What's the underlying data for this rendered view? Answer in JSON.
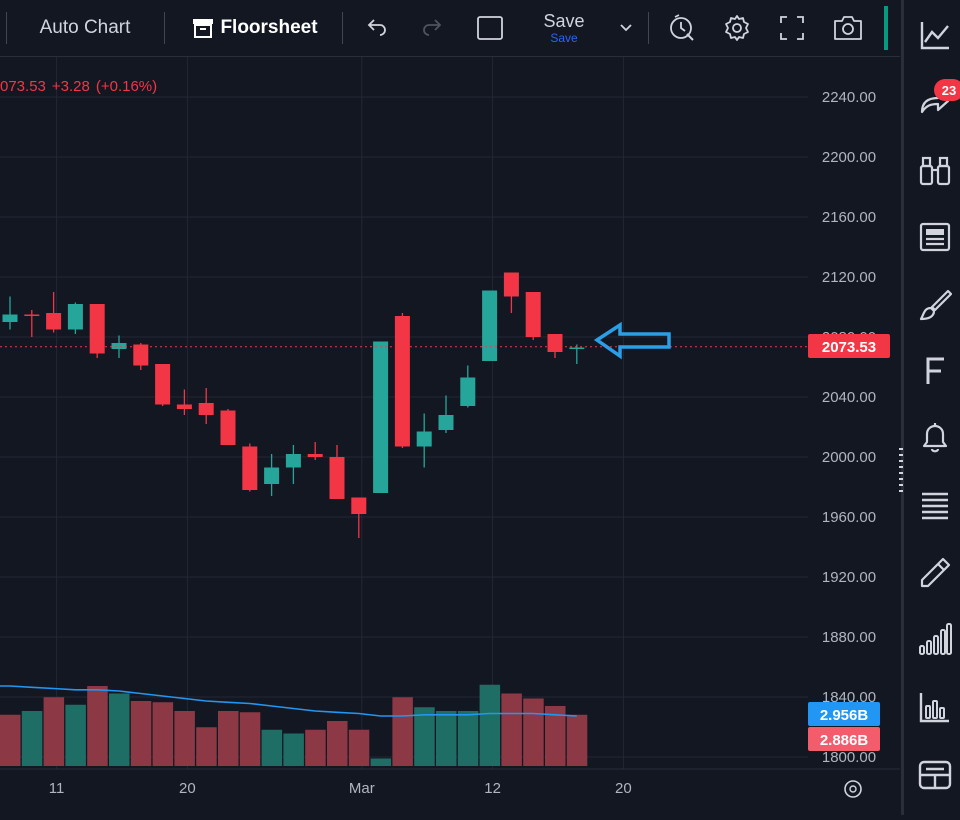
{
  "toolbar": {
    "auto_chart_label": "Auto Chart",
    "floorsheet_label": "Floorsheet",
    "save_label": "Save",
    "save_sublabel": "Save",
    "icons": [
      "undo-icon",
      "redo-icon",
      "rectangle-icon",
      "chevron-down-icon",
      "alert-clock-icon",
      "gear-icon",
      "fullscreen-icon",
      "camera-icon"
    ]
  },
  "legend": {
    "close": "073.53",
    "change": "+3.28",
    "change_pct": "(+0.16%)"
  },
  "sidebar": {
    "badge_count": "23",
    "icons": [
      "line-chart-icon",
      "share-arrow-icon",
      "binoculars-icon",
      "news-icon",
      "brush-icon",
      "f-icon",
      "bell-icon",
      "stack-icon",
      "pencil-icon",
      "signal-bars-icon",
      "bar-chart-icon",
      "grid-layout-icon"
    ]
  },
  "colors": {
    "up": "#26a69a",
    "down": "#f23645",
    "volume_up": "#1f6e66",
    "volume_down": "#8c3845",
    "ma_line": "#2196f3",
    "arrow": "#2b9fe6",
    "background": "#131722",
    "grid": "#232734"
  },
  "chart_data": {
    "type": "candlestick",
    "price_axis": {
      "ticks": [
        "2240.00",
        "2200.00",
        "2160.00",
        "2120.00",
        "2080.00",
        "2040.00",
        "2000.00",
        "1960.00",
        "1920.00",
        "1880.00",
        "1840.00",
        "1800.00"
      ],
      "range": [
        1790,
        2260
      ]
    },
    "time_axis": {
      "labels": [
        {
          "label": "11",
          "bar": 2
        },
        {
          "label": "20",
          "bar": 8
        },
        {
          "label": "Mar",
          "bar": 16
        },
        {
          "label": "12",
          "bar": 22
        },
        {
          "label": "20",
          "bar": 28
        }
      ]
    },
    "last_price": "2073.53",
    "volume_labels": {
      "ma": "2.956B",
      "volume": "2.886B"
    },
    "candles": [
      {
        "o": 2090,
        "h": 2107,
        "l": 2085,
        "c": 2095
      },
      {
        "o": 2095,
        "h": 2098,
        "l": 2080,
        "c": 2094
      },
      {
        "o": 2096,
        "h": 2110,
        "l": 2083,
        "c": 2085
      },
      {
        "o": 2085,
        "h": 2103,
        "l": 2082,
        "c": 2102
      },
      {
        "o": 2102,
        "h": 2102,
        "l": 2066,
        "c": 2069
      },
      {
        "o": 2072,
        "h": 2081,
        "l": 2066,
        "c": 2076
      },
      {
        "o": 2075,
        "h": 2076,
        "l": 2058,
        "c": 2061
      },
      {
        "o": 2062,
        "h": 2062,
        "l": 2034,
        "c": 2035
      },
      {
        "o": 2035,
        "h": 2045,
        "l": 2028,
        "c": 2032
      },
      {
        "o": 2036,
        "h": 2046,
        "l": 2022,
        "c": 2028
      },
      {
        "o": 2031,
        "h": 2032,
        "l": 2008,
        "c": 2008
      },
      {
        "o": 2007,
        "h": 2009,
        "l": 1977,
        "c": 1978
      },
      {
        "o": 1982,
        "h": 2002,
        "l": 1974,
        "c": 1993
      },
      {
        "o": 1993,
        "h": 2008,
        "l": 1982,
        "c": 2002
      },
      {
        "o": 2002,
        "h": 2010,
        "l": 1998,
        "c": 2000
      },
      {
        "o": 2000,
        "h": 2008,
        "l": 1972,
        "c": 1972
      },
      {
        "o": 1973,
        "h": 1973,
        "l": 1946,
        "c": 1962
      },
      {
        "o": 1976,
        "h": 2077,
        "l": 1976,
        "c": 2077
      },
      {
        "o": 2094,
        "h": 2096,
        "l": 2006,
        "c": 2007
      },
      {
        "o": 2007,
        "h": 2029,
        "l": 1993,
        "c": 2017
      },
      {
        "o": 2018,
        "h": 2041,
        "l": 2016,
        "c": 2028
      },
      {
        "o": 2034,
        "h": 2061,
        "l": 2033,
        "c": 2053
      },
      {
        "o": 2064,
        "h": 2111,
        "l": 2064,
        "c": 2111
      },
      {
        "o": 2123,
        "h": 2123,
        "l": 2096,
        "c": 2107
      },
      {
        "o": 2110,
        "h": 2110,
        "l": 2078,
        "c": 2080
      },
      {
        "o": 2082,
        "h": 2082,
        "l": 2066,
        "c": 2070
      },
      {
        "o": 2073,
        "h": 2075,
        "l": 2062,
        "c": 2073
      }
    ],
    "volume": {
      "scale_max": 1.0,
      "bars": [
        {
          "v": 0.41,
          "up": false
        },
        {
          "v": 0.44,
          "up": true
        },
        {
          "v": 0.55,
          "up": false
        },
        {
          "v": 0.49,
          "up": true
        },
        {
          "v": 0.64,
          "up": false
        },
        {
          "v": 0.58,
          "up": true
        },
        {
          "v": 0.52,
          "up": false
        },
        {
          "v": 0.51,
          "up": false
        },
        {
          "v": 0.44,
          "up": false
        },
        {
          "v": 0.31,
          "up": false
        },
        {
          "v": 0.44,
          "up": false
        },
        {
          "v": 0.43,
          "up": false
        },
        {
          "v": 0.29,
          "up": true
        },
        {
          "v": 0.26,
          "up": true
        },
        {
          "v": 0.29,
          "up": false
        },
        {
          "v": 0.36,
          "up": false
        },
        {
          "v": 0.29,
          "up": false
        },
        {
          "v": 0.06,
          "up": true
        },
        {
          "v": 0.55,
          "up": false
        },
        {
          "v": 0.47,
          "up": true
        },
        {
          "v": 0.44,
          "up": true
        },
        {
          "v": 0.44,
          "up": true
        },
        {
          "v": 0.65,
          "up": true
        },
        {
          "v": 0.58,
          "up": false
        },
        {
          "v": 0.54,
          "up": false
        },
        {
          "v": 0.48,
          "up": false
        },
        {
          "v": 0.41,
          "up": false
        }
      ],
      "ma": [
        0.64,
        0.63,
        0.62,
        0.61,
        0.61,
        0.6,
        0.58,
        0.56,
        0.54,
        0.52,
        0.51,
        0.5,
        0.48,
        0.46,
        0.44,
        0.43,
        0.42,
        0.4,
        0.4,
        0.41,
        0.41,
        0.41,
        0.42,
        0.42,
        0.42,
        0.41,
        0.4
      ]
    }
  }
}
